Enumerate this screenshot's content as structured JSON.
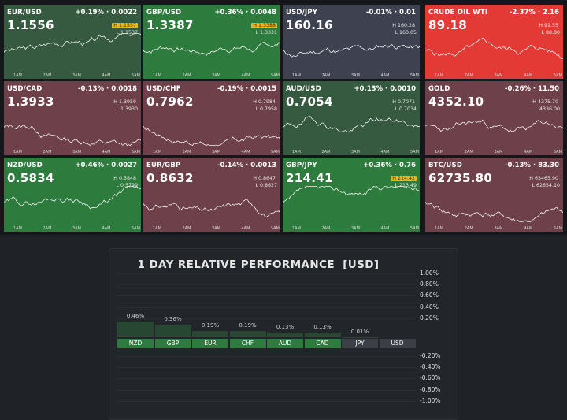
{
  "colors": {
    "green": "#2e7b3e",
    "dark_green": "#355a3f",
    "muted_red": "#6e4049",
    "grey": "#3e4150",
    "bright_red": "#e33a36",
    "highlight": "#e8b820",
    "perf_bar": "#274732",
    "cat_green": "#2f7a3f",
    "cat_grey": "#3c4046"
  },
  "time_axis": [
    "1AM",
    "2AM",
    "3AM",
    "4AM",
    "5AM"
  ],
  "tiles": [
    {
      "symbol": "EUR/USD",
      "change": "+0.19% · 0.0022",
      "price": "1.1556",
      "high": "H 1.1557",
      "low": "L 1.1537",
      "high_highlight": true,
      "color": "dark_green",
      "trend": "up",
      "seed": 3
    },
    {
      "symbol": "GBP/USD",
      "change": "+0.36% · 0.0048",
      "price": "1.3387",
      "high": "H 1.3388",
      "low": "L 1.3331",
      "high_highlight": true,
      "color": "green",
      "trend": "up",
      "seed": 7
    },
    {
      "symbol": "USD/JPY",
      "change": "-0.01% · 0.01",
      "price": "160.16",
      "high": "H 160.28",
      "low": "L 160.05",
      "high_highlight": false,
      "color": "grey",
      "trend": "flat",
      "seed": 11
    },
    {
      "symbol": "CRUDE OIL WTI",
      "change": "-2.37% · 2.16",
      "price": "89.18",
      "high": "H 91.55",
      "low": "L 88.80",
      "high_highlight": false,
      "color": "bright_red",
      "trend": "down",
      "seed": 5
    },
    {
      "symbol": "USD/CAD",
      "change": "-0.13% · 0.0018",
      "price": "1.3933",
      "high": "H 1.3959",
      "low": "L 1.3930",
      "high_highlight": false,
      "color": "muted_red",
      "trend": "down",
      "seed": 13
    },
    {
      "symbol": "USD/CHF",
      "change": "-0.19% · 0.0015",
      "price": "0.7962",
      "high": "H 0.7984",
      "low": "L 0.7958",
      "high_highlight": false,
      "color": "muted_red",
      "trend": "down",
      "seed": 17
    },
    {
      "symbol": "AUD/USD",
      "change": "+0.13% · 0.0010",
      "price": "0.7054",
      "high": "H 0.7071",
      "low": "L 0.7034",
      "high_highlight": false,
      "color": "dark_green",
      "trend": "flat",
      "seed": 19
    },
    {
      "symbol": "GOLD",
      "change": "-0.26% · 11.50",
      "price": "4352.10",
      "high": "H 4375.70",
      "low": "L 4336.00",
      "high_highlight": false,
      "color": "muted_red",
      "trend": "down",
      "seed": 23
    },
    {
      "symbol": "NZD/USD",
      "change": "+0.46% · 0.0027",
      "price": "0.5834",
      "high": "H 0.5848",
      "low": "L 0.5799",
      "high_highlight": false,
      "color": "green",
      "trend": "up",
      "seed": 29
    },
    {
      "symbol": "EUR/GBP",
      "change": "-0.14% · 0.0013",
      "price": "0.8632",
      "high": "H 0.8647",
      "low": "L 0.8627",
      "high_highlight": false,
      "color": "muted_red",
      "trend": "down",
      "seed": 31
    },
    {
      "symbol": "GBP/JPY",
      "change": "+0.36% · 0.76",
      "price": "214.41",
      "high": "H 214.42",
      "low": "L 213.49",
      "high_highlight": true,
      "color": "green",
      "trend": "up",
      "seed": 37
    },
    {
      "symbol": "BTC/USD",
      "change": "-0.13% · 83.30",
      "price": "62735.80",
      "high": "H 63465.90",
      "low": "L 62654.10",
      "high_highlight": false,
      "color": "muted_red",
      "trend": "down",
      "seed": 41
    }
  ],
  "performance": {
    "title": "1 DAY RELATIVE PERFORMANCE  [USD]",
    "y_ticks_positive": [
      "1.00%",
      "0.80%",
      "0.60%",
      "0.40%",
      "0.20%"
    ],
    "y_ticks_negative": [
      "-0.20%",
      "-0.40%",
      "-0.60%",
      "-0.80%",
      "-1.00%"
    ],
    "bars": [
      {
        "currency": "NZD",
        "value": 0.46,
        "label": "0.46%"
      },
      {
        "currency": "GBP",
        "value": 0.36,
        "label": "0.36%"
      },
      {
        "currency": "EUR",
        "value": 0.19,
        "label": "0.19%"
      },
      {
        "currency": "CHF",
        "value": 0.19,
        "label": "0.19%"
      },
      {
        "currency": "AUD",
        "value": 0.13,
        "label": "0.13%"
      },
      {
        "currency": "CAD",
        "value": 0.13,
        "label": "0.13%"
      },
      {
        "currency": "JPY",
        "value": 0.01,
        "label": "0.01%"
      },
      {
        "currency": "USD",
        "value": 0.0,
        "label": ""
      }
    ]
  }
}
